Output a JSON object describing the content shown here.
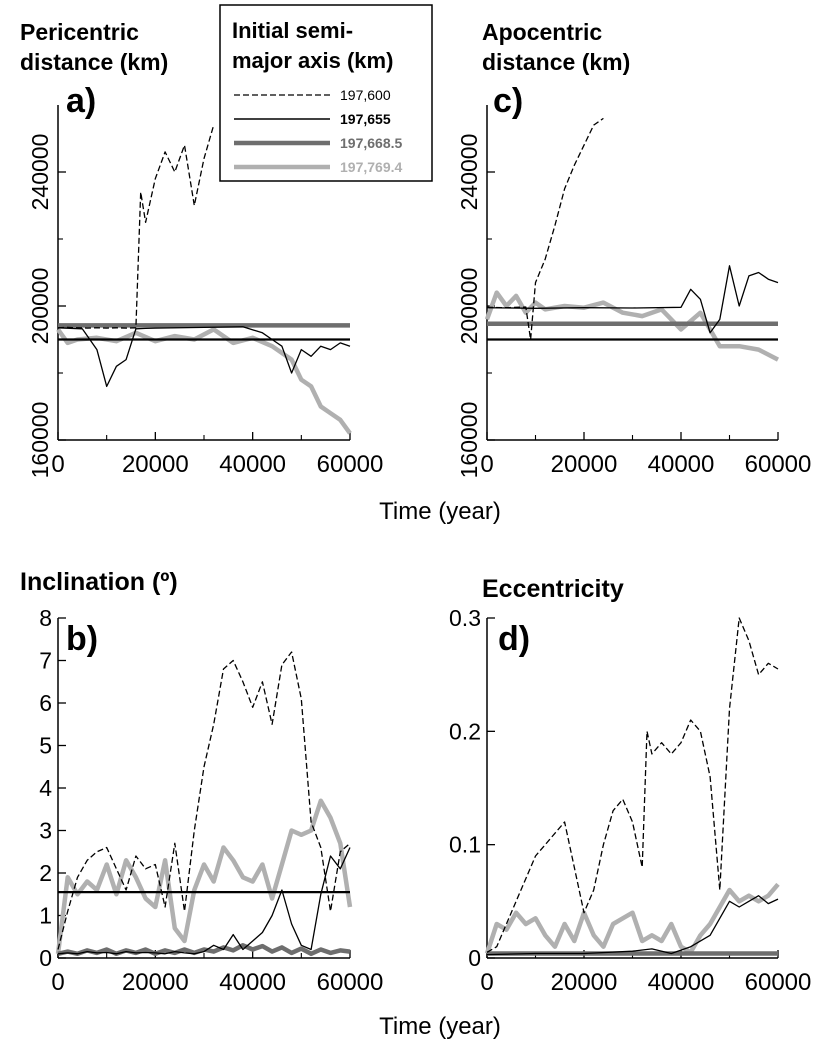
{
  "legend": {
    "title_line1": "Initial semi-",
    "title_line2": "major axis (km)",
    "entries": [
      {
        "label": "197,600",
        "color": "#000000",
        "style": "dashed"
      },
      {
        "label": "197,655",
        "color": "#000000",
        "style": "solid"
      },
      {
        "label": "197,668.5",
        "color": "#6e6e6e",
        "style": "thick"
      },
      {
        "label": "197,769.4",
        "color": "#b0b0b0",
        "style": "thick-light"
      }
    ]
  },
  "shared_xlabel": "Time (year)",
  "chart_data": [
    {
      "id": "a",
      "type": "line",
      "panel_label": "a)",
      "title_line1": "Pericentric",
      "title_line2": "distance (km)",
      "xlim": [
        0,
        60000
      ],
      "ylim": [
        160000,
        260000
      ],
      "xticks": [
        "0",
        "20000",
        "40000",
        "60000"
      ],
      "yticks": [
        "160000",
        "200000",
        "240000"
      ],
      "series": [
        {
          "name": "197,600",
          "x": [
            0,
            2000,
            4000,
            6000,
            8000,
            10000,
            12000,
            14000,
            16000,
            17000,
            18000,
            20000,
            22000,
            24000,
            26000,
            28000,
            30000,
            32000
          ],
          "y": [
            193500,
            193600,
            193500,
            193400,
            193500,
            193400,
            193500,
            193400,
            193500,
            234000,
            225000,
            238000,
            246000,
            240000,
            248000,
            230000,
            244000,
            254000
          ]
        },
        {
          "name": "197,655",
          "x": [
            0,
            5000,
            8000,
            10000,
            12000,
            14000,
            16000,
            18000,
            20000,
            30000,
            38000,
            42000,
            44000,
            46000,
            48000,
            50000,
            52000,
            54000,
            56000,
            58000,
            60000
          ],
          "y": [
            193500,
            193200,
            187000,
            176000,
            182000,
            184000,
            193200,
            193300,
            193400,
            193600,
            193800,
            192000,
            190000,
            188000,
            180000,
            187000,
            185000,
            188000,
            187000,
            189000,
            188000
          ]
        },
        {
          "name": "197,668.5",
          "x": [
            0,
            10000,
            20000,
            30000,
            40000,
            50000,
            60000
          ],
          "y": [
            194200,
            194200,
            194200,
            194200,
            194200,
            194200,
            194200
          ]
        },
        {
          "name": "197,769.4",
          "x": [
            0,
            2000,
            4000,
            8000,
            12000,
            16000,
            20000,
            24000,
            28000,
            32000,
            36000,
            40000,
            44000,
            48000,
            50000,
            52000,
            54000,
            56000,
            58000,
            60000
          ],
          "y": [
            193000,
            189000,
            190000,
            190500,
            189500,
            192000,
            189500,
            191000,
            190000,
            193000,
            189000,
            190500,
            188000,
            184000,
            178000,
            176000,
            170000,
            168000,
            166000,
            162000
          ]
        },
        {
          "name": "reference",
          "x": [
            0,
            60000
          ],
          "y": [
            190000,
            190000
          ]
        }
      ]
    },
    {
      "id": "c",
      "type": "line",
      "panel_label": "c)",
      "title_line1": "Apocentric",
      "title_line2": "distance (km)",
      "xlim": [
        0,
        60000
      ],
      "ylim": [
        160000,
        260000
      ],
      "xticks": [
        "0",
        "20000",
        "40000",
        "60000"
      ],
      "yticks": [
        "160000",
        "200000",
        "240000"
      ],
      "series": [
        {
          "name": "197,600",
          "x": [
            0,
            4000,
            8000,
            9000,
            10000,
            12000,
            14000,
            16000,
            18000,
            20000,
            22000,
            24000
          ],
          "y": [
            199600,
            199500,
            199700,
            190000,
            207000,
            214000,
            224000,
            235000,
            242000,
            248000,
            254000,
            256000
          ]
        },
        {
          "name": "197,655",
          "x": [
            0,
            10000,
            20000,
            30000,
            40000,
            42000,
            44000,
            46000,
            48000,
            50000,
            52000,
            54000,
            56000,
            58000,
            60000
          ],
          "y": [
            199500,
            199300,
            199500,
            199400,
            199600,
            205000,
            202000,
            192000,
            196000,
            212000,
            200000,
            209000,
            210000,
            208000,
            207000
          ]
        },
        {
          "name": "197,668.5",
          "x": [
            0,
            10000,
            20000,
            30000,
            40000,
            50000,
            60000
          ],
          "y": [
            194700,
            194700,
            194700,
            194700,
            194700,
            194700,
            194700
          ]
        },
        {
          "name": "197,769.4",
          "x": [
            0,
            2000,
            4000,
            6000,
            8000,
            10000,
            12000,
            16000,
            20000,
            24000,
            28000,
            32000,
            36000,
            40000,
            44000,
            48000,
            52000,
            56000,
            60000
          ],
          "y": [
            196000,
            204000,
            200000,
            203000,
            198000,
            201000,
            199000,
            200000,
            199500,
            201000,
            198000,
            197000,
            199000,
            193000,
            198000,
            188000,
            188000,
            187000,
            184000
          ]
        },
        {
          "name": "reference",
          "x": [
            0,
            60000
          ],
          "y": [
            190000,
            190000
          ]
        }
      ]
    },
    {
      "id": "b",
      "type": "line",
      "panel_label": "b)",
      "title_line1": "Inclination (º)",
      "title_line2": "",
      "xlim": [
        0,
        60000
      ],
      "ylim": [
        0,
        8
      ],
      "xticks": [
        "0",
        "20000",
        "40000",
        "60000"
      ],
      "yticks": [
        "0",
        "1",
        "2",
        "3",
        "4",
        "5",
        "6",
        "7",
        "8"
      ],
      "series": [
        {
          "name": "197,600",
          "x": [
            0,
            2000,
            4000,
            6000,
            8000,
            10000,
            12000,
            14000,
            16000,
            18000,
            20000,
            22000,
            24000,
            26000,
            28000,
            30000,
            32000,
            34000,
            36000,
            38000,
            40000,
            42000,
            44000,
            46000,
            48000,
            50000,
            52000,
            54000,
            56000,
            58000,
            60000
          ],
          "y": [
            0.2,
            1.1,
            1.9,
            2.3,
            2.5,
            2.6,
            2.1,
            1.6,
            2.4,
            2.1,
            2.2,
            1.2,
            2.7,
            1.1,
            3.0,
            4.5,
            5.5,
            6.8,
            7.0,
            6.5,
            5.9,
            6.5,
            5.5,
            6.9,
            7.2,
            6.1,
            3.2,
            2.6,
            1.1,
            2.5,
            2.7
          ]
        },
        {
          "name": "197,655",
          "x": [
            0,
            2000,
            4000,
            6000,
            8000,
            10000,
            12000,
            14000,
            16000,
            18000,
            20000,
            22000,
            24000,
            26000,
            28000,
            30000,
            32000,
            34000,
            36000,
            38000,
            40000,
            42000,
            44000,
            46000,
            48000,
            50000,
            52000,
            54000,
            56000,
            58000,
            60000
          ],
          "y": [
            0.1,
            0.12,
            0.1,
            0.15,
            0.12,
            0.13,
            0.1,
            0.15,
            0.12,
            0.13,
            0.12,
            0.1,
            0.15,
            0.12,
            0.1,
            0.15,
            0.3,
            0.2,
            0.55,
            0.2,
            0.4,
            0.6,
            1.0,
            1.6,
            0.8,
            0.3,
            0.2,
            1.5,
            2.4,
            2.1,
            2.6
          ]
        },
        {
          "name": "197,668.5",
          "x": [
            0,
            2000,
            4000,
            6000,
            8000,
            10000,
            12000,
            14000,
            16000,
            18000,
            20000,
            22000,
            24000,
            26000,
            28000,
            30000,
            32000,
            34000,
            36000,
            38000,
            40000,
            42000,
            44000,
            46000,
            48000,
            50000,
            52000,
            54000,
            56000,
            58000,
            60000
          ],
          "y": [
            0.1,
            0.15,
            0.1,
            0.18,
            0.12,
            0.2,
            0.1,
            0.18,
            0.12,
            0.2,
            0.1,
            0.18,
            0.12,
            0.2,
            0.12,
            0.2,
            0.15,
            0.25,
            0.18,
            0.3,
            0.2,
            0.28,
            0.15,
            0.25,
            0.12,
            0.22,
            0.1,
            0.2,
            0.12,
            0.18,
            0.15
          ]
        },
        {
          "name": "197,769.4",
          "x": [
            0,
            2000,
            4000,
            6000,
            8000,
            10000,
            12000,
            14000,
            16000,
            18000,
            20000,
            22000,
            24000,
            26000,
            28000,
            30000,
            32000,
            34000,
            36000,
            38000,
            40000,
            42000,
            44000,
            46000,
            48000,
            50000,
            52000,
            54000,
            56000,
            58000,
            60000
          ],
          "y": [
            0.1,
            1.9,
            1.5,
            1.8,
            1.6,
            2.2,
            1.5,
            2.3,
            1.9,
            1.4,
            1.2,
            2.3,
            0.7,
            0.4,
            1.6,
            2.2,
            1.8,
            2.6,
            2.3,
            1.9,
            1.8,
            2.2,
            1.4,
            2.2,
            3.0,
            2.9,
            3.0,
            3.7,
            3.3,
            2.7,
            1.2
          ]
        },
        {
          "name": "reference",
          "x": [
            0,
            60000
          ],
          "y": [
            1.55,
            1.55
          ]
        }
      ]
    },
    {
      "id": "d",
      "type": "line",
      "panel_label": "d)",
      "title_line1": "Eccentricity",
      "title_line2": "",
      "xlim": [
        0,
        60000
      ],
      "ylim": [
        0,
        0.3
      ],
      "xticks": [
        "0",
        "20000",
        "40000",
        "60000"
      ],
      "yticks": [
        "0",
        "0.1",
        "0.2",
        "0.3"
      ],
      "series": [
        {
          "name": "197,600",
          "x": [
            0,
            2000,
            4000,
            6000,
            8000,
            10000,
            12000,
            14000,
            16000,
            18000,
            20000,
            22000,
            24000,
            26000,
            28000,
            30000,
            32000,
            33000,
            34000,
            36000,
            38000,
            40000,
            42000,
            44000,
            46000,
            48000,
            50000,
            52000,
            54000,
            56000,
            58000,
            60000
          ],
          "y": [
            0.005,
            0.01,
            0.03,
            0.05,
            0.07,
            0.09,
            0.1,
            0.11,
            0.12,
            0.08,
            0.04,
            0.06,
            0.1,
            0.13,
            0.14,
            0.12,
            0.08,
            0.2,
            0.18,
            0.19,
            0.18,
            0.19,
            0.21,
            0.2,
            0.16,
            0.06,
            0.22,
            0.3,
            0.28,
            0.25,
            0.26,
            0.255
          ]
        },
        {
          "name": "197,655",
          "x": [
            0,
            10000,
            20000,
            30000,
            34000,
            38000,
            42000,
            46000,
            48000,
            50000,
            52000,
            54000,
            56000,
            58000,
            60000
          ],
          "y": [
            0.003,
            0.004,
            0.004,
            0.006,
            0.008,
            0.004,
            0.01,
            0.02,
            0.035,
            0.05,
            0.045,
            0.05,
            0.055,
            0.048,
            0.052
          ]
        },
        {
          "name": "197,668.5",
          "x": [
            0,
            10000,
            20000,
            30000,
            40000,
            50000,
            60000
          ],
          "y": [
            0.004,
            0.004,
            0.004,
            0.004,
            0.004,
            0.004,
            0.004
          ]
        },
        {
          "name": "197,769.4",
          "x": [
            0,
            2000,
            4000,
            6000,
            8000,
            10000,
            12000,
            14000,
            16000,
            18000,
            20000,
            22000,
            24000,
            26000,
            28000,
            30000,
            32000,
            34000,
            36000,
            38000,
            40000,
            42000,
            44000,
            46000,
            48000,
            50000,
            52000,
            54000,
            56000,
            58000,
            60000
          ],
          "y": [
            0.004,
            0.03,
            0.025,
            0.04,
            0.03,
            0.035,
            0.02,
            0.01,
            0.03,
            0.015,
            0.04,
            0.02,
            0.01,
            0.03,
            0.035,
            0.04,
            0.015,
            0.02,
            0.015,
            0.03,
            0.01,
            0.005,
            0.02,
            0.03,
            0.045,
            0.06,
            0.05,
            0.055,
            0.05,
            0.055,
            0.065
          ]
        }
      ]
    }
  ]
}
